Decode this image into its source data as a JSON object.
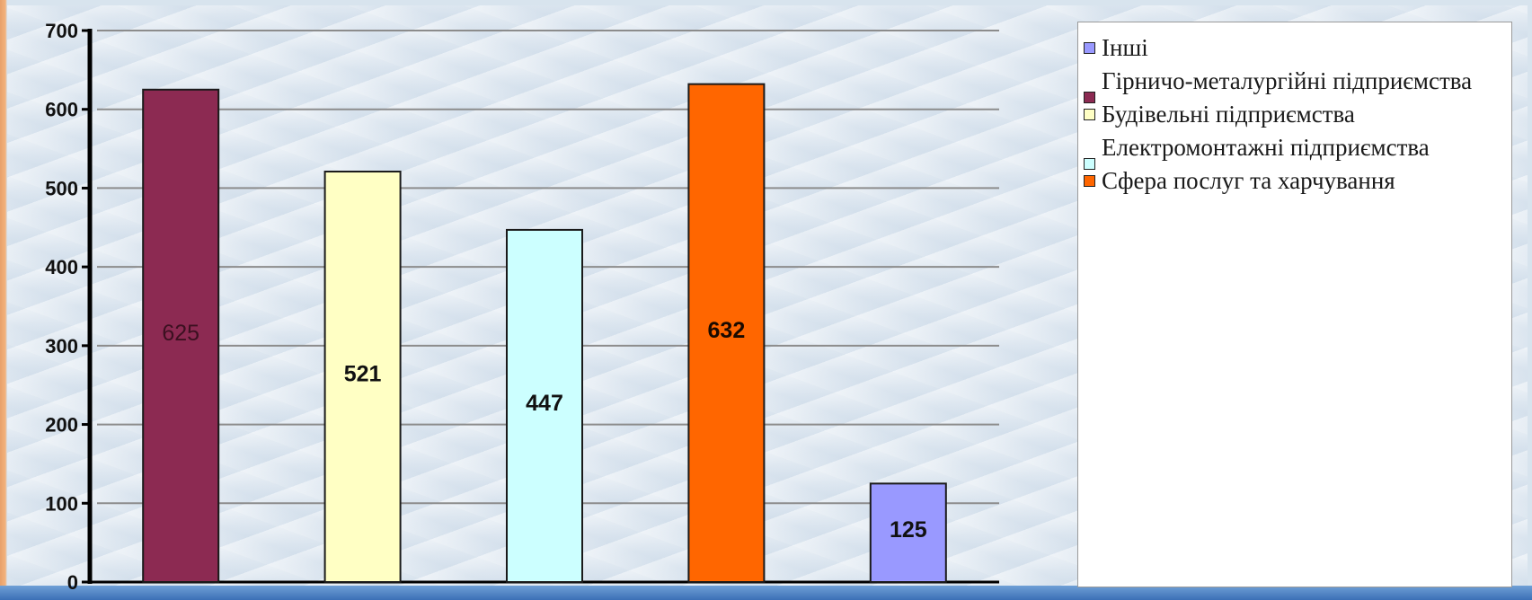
{
  "chart_data": {
    "type": "bar",
    "title": "",
    "xlabel": "",
    "ylabel": "",
    "ylim": [
      0,
      700
    ],
    "yticks": [
      0,
      100,
      200,
      300,
      400,
      500,
      600,
      700
    ],
    "grid": true,
    "legend_position": "right",
    "series": [
      {
        "name": "Гірничо-металургійні підприємства",
        "value": 625,
        "color": "#8c2a52",
        "label_color": "#3b1020",
        "label_weight": "normal"
      },
      {
        "name": "Будівельні підприємства",
        "value": 521,
        "color": "#ffffc4",
        "label_color": "#111111",
        "label_weight": "bold"
      },
      {
        "name": "Електромонтажні підприємства",
        "value": 447,
        "color": "#ccffff",
        "label_color": "#111111",
        "label_weight": "bold"
      },
      {
        "name": "Сфера послуг та харчування",
        "value": 632,
        "color": "#ff6600",
        "label_color": "#1a0a00",
        "label_weight": "bold"
      },
      {
        "name": "Інші",
        "value": 125,
        "color": "#9999ff",
        "label_color": "#111111",
        "label_weight": "bold"
      }
    ],
    "legend": [
      {
        "label": "Інші",
        "color": "#9999ff"
      },
      {
        "label": "Гірничо-металургійні підприємства",
        "color": "#8c2a52"
      },
      {
        "label": "Будівельні підприємства",
        "color": "#ffffc4"
      },
      {
        "label": "Електромонтажні підприємства",
        "color": "#ccffff"
      },
      {
        "label": "Сфера послуг та харчування",
        "color": "#ff6600"
      }
    ]
  }
}
